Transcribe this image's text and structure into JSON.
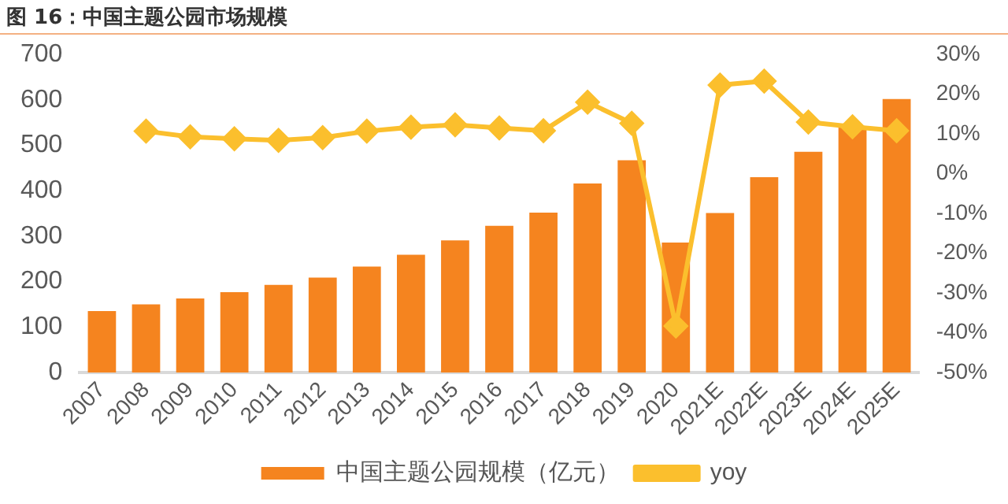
{
  "chart_data": {
    "type": "bar",
    "title": "图 16：中国主题公园市场规模",
    "categories": [
      "2007",
      "2008",
      "2009",
      "2010",
      "2011",
      "2012",
      "2013",
      "2014",
      "2015",
      "2016",
      "2017",
      "2018",
      "2019",
      "2020",
      "2021E",
      "2022E",
      "2023E",
      "2024E",
      "2025E"
    ],
    "series": [
      {
        "name": "中国主题公园规模（亿元）",
        "color": "#f5841f",
        "values": [
          135,
          150,
          163,
          177,
          193,
          209,
          233,
          259,
          291,
          323,
          352,
          416,
          467,
          286,
          351,
          430,
          486,
          539,
          602
        ]
      },
      {
        "name": "yoy",
        "type": "line",
        "axis": "y2",
        "color": "#fbbf2d",
        "marker": "diamond",
        "values": [
          null,
          10.7,
          9.3,
          8.8,
          8.4,
          9.1,
          10.7,
          11.7,
          12.3,
          11.5,
          10.8,
          18,
          12.7,
          -38.3,
          22.3,
          23.3,
          13,
          11.8,
          10.8
        ]
      }
    ],
    "ylim": [
      0,
      700
    ],
    "yticks": [
      0,
      100,
      200,
      300,
      400,
      500,
      600,
      700
    ],
    "y2lim": [
      -50,
      30
    ],
    "y2ticks": [
      {
        "value": -50,
        "label": "-50%"
      },
      {
        "value": -40,
        "label": "-40%"
      },
      {
        "value": -30,
        "label": "-30%"
      },
      {
        "value": -20,
        "label": "-20%"
      },
      {
        "value": -10,
        "label": "-10%"
      },
      {
        "value": 0,
        "label": "0%"
      },
      {
        "value": 10,
        "label": "10%"
      },
      {
        "value": 20,
        "label": "20%"
      },
      {
        "value": 30,
        "label": "30%"
      }
    ],
    "grid": false,
    "legend": "bottom"
  }
}
